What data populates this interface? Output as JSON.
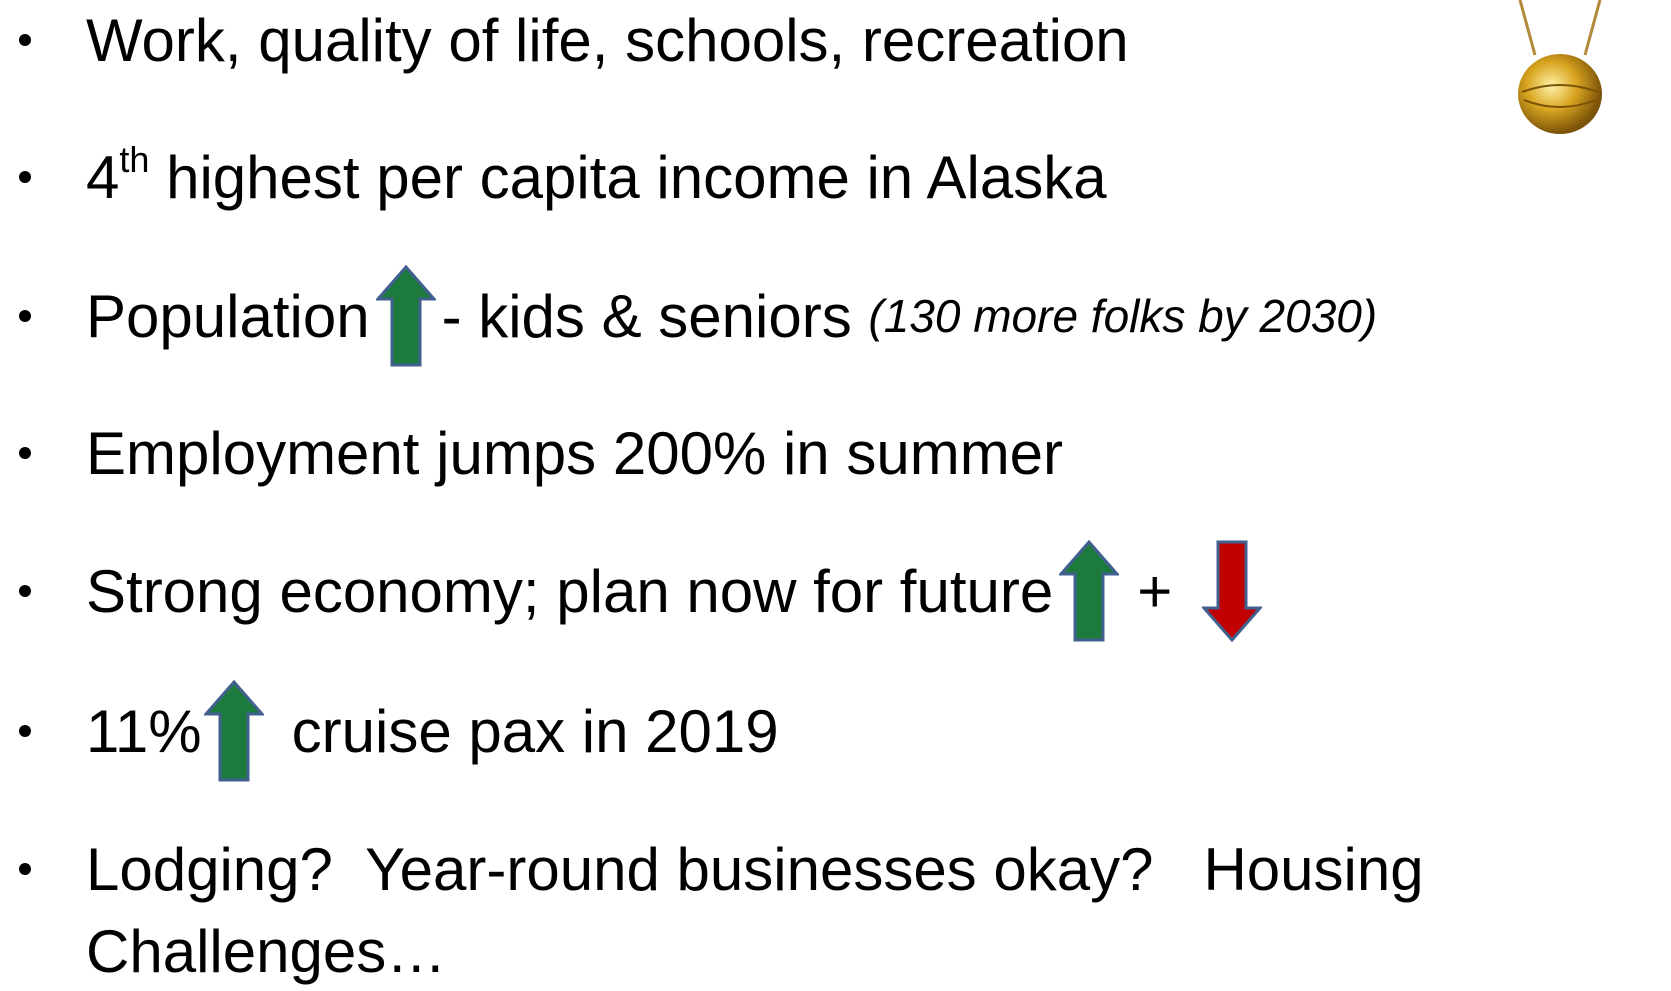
{
  "bullets": [
    {
      "text": "Work, quality of life, schools, recreation"
    },
    {
      "base": "4",
      "sup": "th",
      "text": " highest per capita income in Alaska"
    },
    {
      "text": "Population",
      "after": "- kids & seniors ",
      "note": "(130 more folks by 2030)"
    },
    {
      "text": "Employment jumps 200% in summer"
    },
    {
      "text": "Strong economy; plan now for future",
      "plus": "+"
    },
    {
      "text": "11%",
      "after": "cruise pax in 2019"
    },
    {
      "lines": [
        "Lodging?  Year-round businesses okay?   Housing",
        "Challenges…"
      ]
    }
  ]
}
